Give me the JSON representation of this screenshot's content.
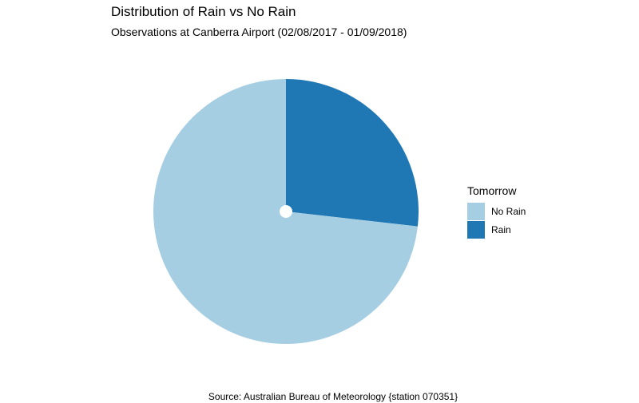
{
  "chart_data": {
    "type": "pie",
    "title": "Distribution of Rain vs No Rain",
    "subtitle": "Observations at Canberra Airport (02/08/2017 - 01/09/2018)",
    "caption": "Source: Australian Bureau of Meteorology {station 070351}",
    "legend": {
      "title": "Tomorrow",
      "placement": "right"
    },
    "slices": [
      {
        "label": "No Rain",
        "value": 73.2,
        "color": "#a6cee3"
      },
      {
        "label": "Rain",
        "value": 26.8,
        "color": "#1f78b4"
      }
    ]
  }
}
